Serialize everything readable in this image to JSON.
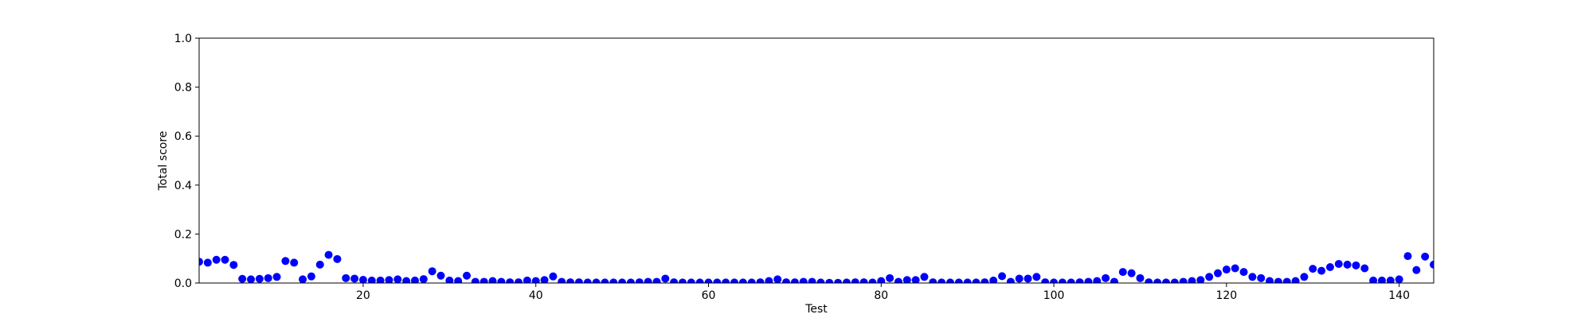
{
  "chart_data": {
    "type": "scatter",
    "xlabel": "Test",
    "ylabel": "Total score",
    "xlim": [
      1,
      144
    ],
    "ylim": [
      0,
      1
    ],
    "xticks": [
      20,
      40,
      60,
      80,
      100,
      120,
      140
    ],
    "yticks": [
      {
        "value": 0,
        "label": "0.0"
      },
      {
        "value": 0.2,
        "label": "0.2"
      },
      {
        "value": 0.4,
        "label": "0.4"
      },
      {
        "value": 0.6,
        "label": "0.6"
      },
      {
        "value": 0.8,
        "label": "0.8"
      },
      {
        "value": 1,
        "label": "1.0"
      }
    ],
    "grid": false,
    "series": [
      {
        "color": "#0000ff",
        "x": [
          1,
          2,
          3,
          4,
          5,
          6,
          7,
          8,
          9,
          10,
          11,
          12,
          13,
          14,
          15,
          16,
          17,
          18,
          19,
          20,
          21,
          22,
          23,
          24,
          25,
          26,
          27,
          28,
          29,
          30,
          31,
          32,
          33,
          34,
          35,
          36,
          37,
          38,
          39,
          40,
          41,
          42,
          43,
          44,
          45,
          46,
          47,
          48,
          49,
          50,
          51,
          52,
          53,
          54,
          55,
          56,
          57,
          58,
          59,
          60,
          61,
          62,
          63,
          64,
          65,
          66,
          67,
          68,
          69,
          70,
          71,
          72,
          73,
          74,
          75,
          76,
          77,
          78,
          79,
          80,
          81,
          82,
          83,
          84,
          85,
          86,
          87,
          88,
          89,
          90,
          91,
          92,
          93,
          94,
          95,
          96,
          97,
          98,
          99,
          100,
          101,
          102,
          103,
          104,
          105,
          106,
          107,
          108,
          109,
          110,
          111,
          112,
          113,
          114,
          115,
          116,
          117,
          118,
          119,
          120,
          121,
          122,
          123,
          124,
          125,
          126,
          127,
          128,
          129,
          130,
          131,
          132,
          133,
          134,
          135,
          136,
          137,
          138,
          139,
          140,
          141,
          142,
          143,
          144
        ],
        "values": [
          0.087,
          0.083,
          0.095,
          0.095,
          0.074,
          0.017,
          0.015,
          0.017,
          0.02,
          0.025,
          0.09,
          0.083,
          0.015,
          0.027,
          0.075,
          0.115,
          0.098,
          0.02,
          0.018,
          0.013,
          0.01,
          0.01,
          0.012,
          0.015,
          0.008,
          0.01,
          0.016,
          0.048,
          0.03,
          0.01,
          0.008,
          0.03,
          0.005,
          0.005,
          0.008,
          0.005,
          0.003,
          0.003,
          0.01,
          0.008,
          0.012,
          0.027,
          0.005,
          0.003,
          0.003,
          0.002,
          0.002,
          0.002,
          0.002,
          0.002,
          0.002,
          0.003,
          0.005,
          0.005,
          0.018,
          0.003,
          0.002,
          0.002,
          0.002,
          0.002,
          0.002,
          0.002,
          0.002,
          0.002,
          0.002,
          0.003,
          0.008,
          0.015,
          0.003,
          0.003,
          0.005,
          0.005,
          0.002,
          0.001,
          0.001,
          0.002,
          0.003,
          0.003,
          0.002,
          0.008,
          0.02,
          0.005,
          0.012,
          0.012,
          0.025,
          0.003,
          0.002,
          0.002,
          0.002,
          0.002,
          0.002,
          0.003,
          0.01,
          0.028,
          0.005,
          0.018,
          0.018,
          0.025,
          0.003,
          0.002,
          0.002,
          0.002,
          0.003,
          0.005,
          0.008,
          0.02,
          0.005,
          0.045,
          0.04,
          0.02,
          0.003,
          0.002,
          0.002,
          0.002,
          0.005,
          0.008,
          0.012,
          0.025,
          0.04,
          0.055,
          0.06,
          0.045,
          0.025,
          0.02,
          0.008,
          0.005,
          0.005,
          0.008,
          0.025,
          0.058,
          0.05,
          0.065,
          0.078,
          0.075,
          0.072,
          0.06,
          0.01,
          0.01,
          0.01,
          0.015,
          0.11,
          0.053,
          0.108,
          0.075
        ]
      }
    ]
  }
}
